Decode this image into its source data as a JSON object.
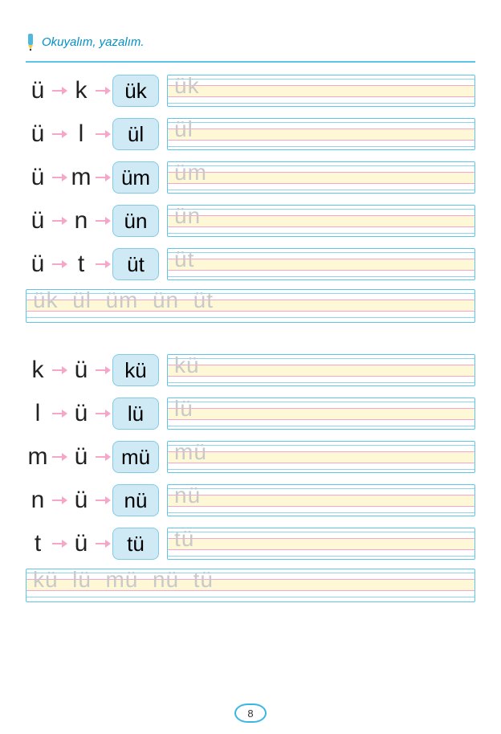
{
  "header": {
    "title": "Okuyalım, yazalım."
  },
  "colors": {
    "badge_bg": "#cfeaf5",
    "badge_border": "#7fcbe6",
    "arrow": "#f6a6c8",
    "box_border": "#5ec5e6",
    "band": "#fff8d6",
    "line_blue": "#8fd4ea",
    "line_pink": "#f6a6c8",
    "trace": "#c9c9c9",
    "title": "#0090c8"
  },
  "section1": {
    "rows": [
      {
        "l1": "ü",
        "l2": "k",
        "combo": "ük",
        "trace": "ük"
      },
      {
        "l1": "ü",
        "l2": "l",
        "combo": "ül",
        "trace": "ül"
      },
      {
        "l1": "ü",
        "l2": "m",
        "combo": "üm",
        "trace": "üm"
      },
      {
        "l1": "ü",
        "l2": "n",
        "combo": "ün",
        "trace": "ün"
      },
      {
        "l1": "ü",
        "l2": "t",
        "combo": "üt",
        "trace": "üt"
      }
    ],
    "summary_trace": "ük  ül  üm  ün  üt"
  },
  "section2": {
    "rows": [
      {
        "l1": "k",
        "l2": "ü",
        "combo": "kü",
        "trace": "kü"
      },
      {
        "l1": "l",
        "l2": "ü",
        "combo": "lü",
        "trace": "lü"
      },
      {
        "l1": "m",
        "l2": "ü",
        "combo": "mü",
        "trace": "mü"
      },
      {
        "l1": "n",
        "l2": "ü",
        "combo": "nü",
        "trace": "nü"
      },
      {
        "l1": "t",
        "l2": "ü",
        "combo": "tü",
        "trace": "tü"
      }
    ],
    "summary_trace": "kü  lü  mü  nü  tü"
  },
  "page_number": "8"
}
